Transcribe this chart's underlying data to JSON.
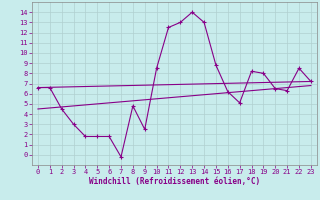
{
  "xlabel": "Windchill (Refroidissement éolien,°C)",
  "background_color": "#c8ecec",
  "grid_color": "#b0d0d0",
  "line_color": "#880088",
  "spine_color": "#888888",
  "xlim": [
    -0.5,
    23.5
  ],
  "ylim": [
    -1.0,
    15.0
  ],
  "xticks": [
    0,
    1,
    2,
    3,
    4,
    5,
    6,
    7,
    8,
    9,
    10,
    11,
    12,
    13,
    14,
    15,
    16,
    17,
    18,
    19,
    20,
    21,
    22,
    23
  ],
  "yticks": [
    0,
    1,
    2,
    3,
    4,
    5,
    6,
    7,
    8,
    9,
    10,
    11,
    12,
    13,
    14
  ],
  "series1_x": [
    0,
    1,
    2,
    3,
    4,
    5,
    6,
    7,
    8,
    9,
    10,
    11,
    12,
    13,
    14,
    15,
    16,
    17,
    18,
    19,
    20,
    21,
    22,
    23
  ],
  "series1_y": [
    6.6,
    6.6,
    4.5,
    3.0,
    1.8,
    1.8,
    1.8,
    -0.2,
    4.8,
    2.5,
    8.5,
    12.5,
    13.0,
    14.0,
    13.0,
    8.8,
    6.2,
    5.1,
    8.2,
    8.0,
    6.5,
    6.3,
    8.5,
    7.2
  ],
  "reg_line1_x": [
    0,
    23
  ],
  "reg_line1_y": [
    6.6,
    7.2
  ],
  "reg_line2_x": [
    0,
    23
  ],
  "reg_line2_y": [
    4.5,
    6.8
  ],
  "tick_fontsize": 5,
  "xlabel_fontsize": 5.5
}
